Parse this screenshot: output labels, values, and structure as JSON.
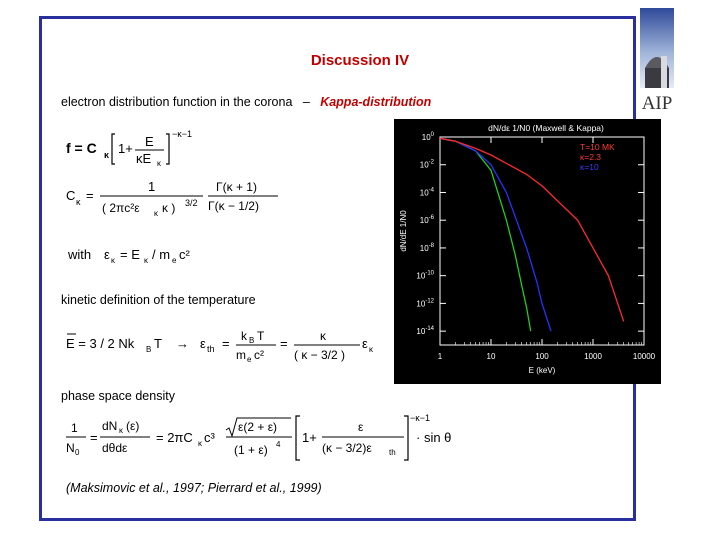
{
  "slide": {
    "title": "Discussion IV",
    "subtitle": "electron distribution function in the corona",
    "subtitle_dash": "–",
    "subtitle_emph": "Kappa-distribution",
    "section_temperature": "kinetic definition of the temperature",
    "section_phase": "phase space density",
    "citation": "(Maksimovic et al., 1997; Pierrard et al., 1999)",
    "equation_with_word": "with",
    "logo_text": "AIP"
  },
  "chart_data": {
    "type": "line",
    "title": "dN/dε 1/N0 (Maxwell & Kappa)",
    "xlabel": "E (keV)",
    "ylabel": "dN/dE 1/N0",
    "xscale": "log",
    "yscale": "log",
    "xlim": [
      1,
      10000
    ],
    "ylim": [
      1e-15,
      1
    ],
    "x_ticks": [
      "1",
      "10",
      "100",
      "1000",
      "10000"
    ],
    "y_ticks": [
      "10^0",
      "10^-2",
      "10^-4",
      "10^-6",
      "10^-8",
      "10^-10",
      "10^-12",
      "10^-14"
    ],
    "legend": [
      "T=10 MK",
      "κ=2.3",
      "κ=10"
    ],
    "legend_colors": [
      "#ff3b2f",
      "#ff3b2f",
      "#3b3bff"
    ],
    "background": "#000000",
    "series": [
      {
        "name": "Maxwell",
        "color": "#22cc22",
        "x": [
          1,
          2,
          5,
          10,
          20,
          30,
          40,
          50,
          60
        ],
        "y": [
          0.8,
          0.5,
          0.1,
          0.004,
          1e-06,
          3e-09,
          2e-11,
          5e-13,
          1e-14
        ]
      },
      {
        "name": "κ=10",
        "color": "#2233ff",
        "x": [
          1,
          2,
          5,
          10,
          20,
          50,
          80,
          100,
          150
        ],
        "y": [
          0.8,
          0.5,
          0.1,
          0.01,
          0.0001,
          1e-08,
          3e-11,
          1e-12,
          1e-14
        ]
      },
      {
        "name": "κ=2.3",
        "color": "#ff2a2a",
        "x": [
          1,
          2,
          5,
          10,
          50,
          100,
          500,
          1000,
          2000,
          4000
        ],
        "y": [
          0.8,
          0.5,
          0.15,
          0.05,
          0.002,
          0.0003,
          1e-06,
          1e-08,
          1e-10,
          5e-14
        ]
      }
    ]
  }
}
